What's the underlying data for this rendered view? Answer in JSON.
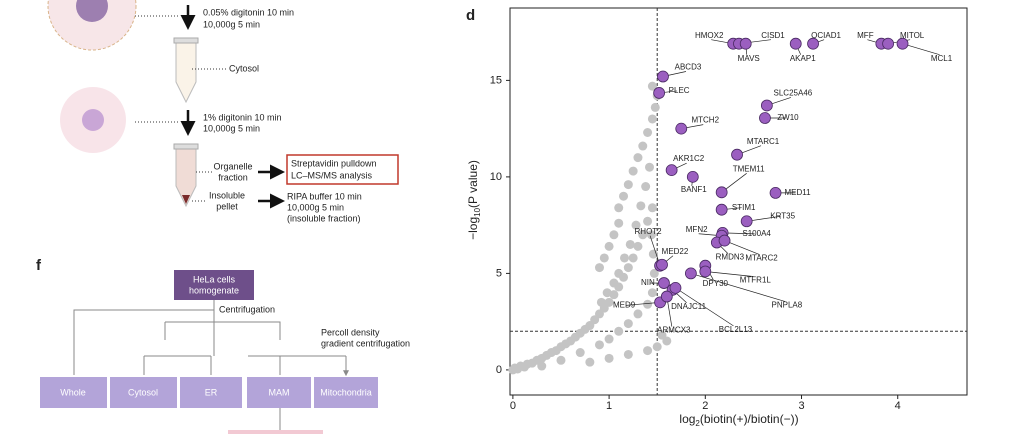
{
  "panel_c": {
    "step1": [
      "0.05% digitonin 10 min",
      "10,000g 5 min"
    ],
    "cytosol": "Cytosol",
    "step2": [
      "1% digitonin 10 min",
      "10,000g 5 min"
    ],
    "organelle": [
      "Organelle",
      "fraction"
    ],
    "analysis": [
      "Streptavidin pulldown",
      "LC–MS/MS analysis"
    ],
    "pellet": [
      "Insoluble",
      "pellet"
    ],
    "ripa": [
      "RIPA buffer 10 min",
      "10,000g 5 min",
      "(insoluble fraction)"
    ]
  },
  "panel_f": {
    "label": "f",
    "root": [
      "HeLa cells",
      "homogenate"
    ],
    "centrifugation": "Centrifugation",
    "percoll": [
      "Percoll density",
      "gradient centrifugation"
    ],
    "fractions": [
      "Whole",
      "Cytosol",
      "ER",
      "MAM",
      "Mitochondria"
    ]
  },
  "chart_data": {
    "type": "scatter",
    "panel_label": "d",
    "x_label": {
      "prefix": "log",
      "sub": "2",
      "rest": "(biotin(+)/biotin(−))"
    },
    "y_label": {
      "prefix": "−log",
      "sub": "10",
      "rest": "(P value)"
    },
    "xlim": [
      -0.03,
      4.72
    ],
    "ylim": [
      -1.3,
      18.75
    ],
    "xticks": [
      0,
      1,
      2,
      3,
      4
    ],
    "yticks": [
      0,
      5,
      10,
      15
    ],
    "thresholds": {
      "x": 1.5,
      "y": 2
    },
    "series": [
      {
        "color": "#c4c4c4",
        "x": [
          0.0,
          0.02,
          0.05,
          0.08,
          0.12,
          0.15,
          0.2,
          0.25,
          0.3,
          0.35,
          0.4,
          0.45,
          0.5,
          0.55,
          0.6,
          0.65,
          0.7,
          0.75,
          0.8,
          0.85,
          0.9,
          0.95,
          1.0,
          1.05,
          1.1,
          1.15,
          1.2,
          1.25,
          1.3,
          1.35,
          1.4,
          1.45,
          0.3,
          0.5,
          0.7,
          0.9,
          1.0,
          1.1,
          1.2,
          1.3,
          1.4,
          1.45,
          1.5,
          1.4,
          1.2,
          1.0,
          0.8,
          1.6,
          1.55,
          1.47,
          1.46,
          1.44,
          0.9,
          0.95,
          1.0,
          1.05,
          1.1,
          1.1,
          1.15,
          1.2,
          1.25,
          1.3,
          1.35,
          1.4,
          1.45,
          1.48,
          1.5,
          1.45,
          1.42,
          1.38,
          1.33,
          1.28,
          1.22,
          1.16,
          1.1,
          1.05,
          0.98,
          0.92
        ],
        "values": [
          0.0,
          0.1,
          0.05,
          0.2,
          0.15,
          0.3,
          0.35,
          0.5,
          0.6,
          0.75,
          0.9,
          1.0,
          1.2,
          1.35,
          1.5,
          1.7,
          1.9,
          2.1,
          2.3,
          2.6,
          2.9,
          3.2,
          3.5,
          3.9,
          4.3,
          4.8,
          5.3,
          5.8,
          6.4,
          7.0,
          7.7,
          8.4,
          0.2,
          0.5,
          0.9,
          1.3,
          1.6,
          2.0,
          2.4,
          2.9,
          3.4,
          4.0,
          1.2,
          1.0,
          0.8,
          0.6,
          0.4,
          1.5,
          1.8,
          5.0,
          6.0,
          7.0,
          5.3,
          5.8,
          6.4,
          7.0,
          7.6,
          8.4,
          9.0,
          9.6,
          10.3,
          11.0,
          11.6,
          12.3,
          13.0,
          13.6,
          14.2,
          14.7,
          10.5,
          9.5,
          8.5,
          7.5,
          6.5,
          5.8,
          5.0,
          4.5,
          4.0,
          3.5
        ]
      },
      {
        "color": "#9b5fc0",
        "labels": [
          "HMOX2",
          "CISD1",
          "MAVS",
          "AKAP1",
          "OCIAD1",
          "MFF",
          "MITOL",
          "MCL1",
          "ABCD3",
          "PLEC",
          "SLC25A46",
          "ZW10",
          "MTCH2",
          "MTARC1",
          "AKR1C2",
          "BANF1",
          "TMEM11",
          "MED11",
          "STIM1",
          "KRT35",
          "S100A4",
          "MFN2",
          "RMDN3",
          "MTARC2",
          "RHOT2",
          "MED22",
          "DPY30",
          "MTFR1L",
          "PNPLA8",
          "NIN",
          "MED9",
          "DNAJC11",
          "ARMCX3",
          "BCL2L13"
        ],
        "x": [
          2.29,
          2.35,
          2.42,
          2.94,
          3.12,
          3.83,
          3.9,
          4.05,
          1.56,
          1.52,
          2.64,
          2.62,
          1.75,
          2.33,
          1.65,
          1.87,
          2.17,
          2.73,
          2.17,
          2.43,
          2.18,
          2.17,
          2.12,
          2.2,
          1.53,
          1.55,
          2.0,
          2.0,
          1.85,
          1.57,
          1.53,
          1.66,
          1.6,
          1.69
        ],
        "values": [
          16.9,
          16.9,
          16.9,
          16.9,
          16.9,
          16.9,
          16.9,
          16.9,
          15.2,
          14.35,
          13.7,
          13.05,
          12.5,
          11.15,
          10.35,
          10.0,
          9.2,
          9.17,
          8.3,
          7.7,
          7.1,
          6.95,
          6.6,
          6.7,
          5.4,
          5.45,
          5.4,
          5.1,
          5.0,
          4.5,
          3.5,
          4.15,
          3.8,
          4.25
        ]
      }
    ]
  }
}
